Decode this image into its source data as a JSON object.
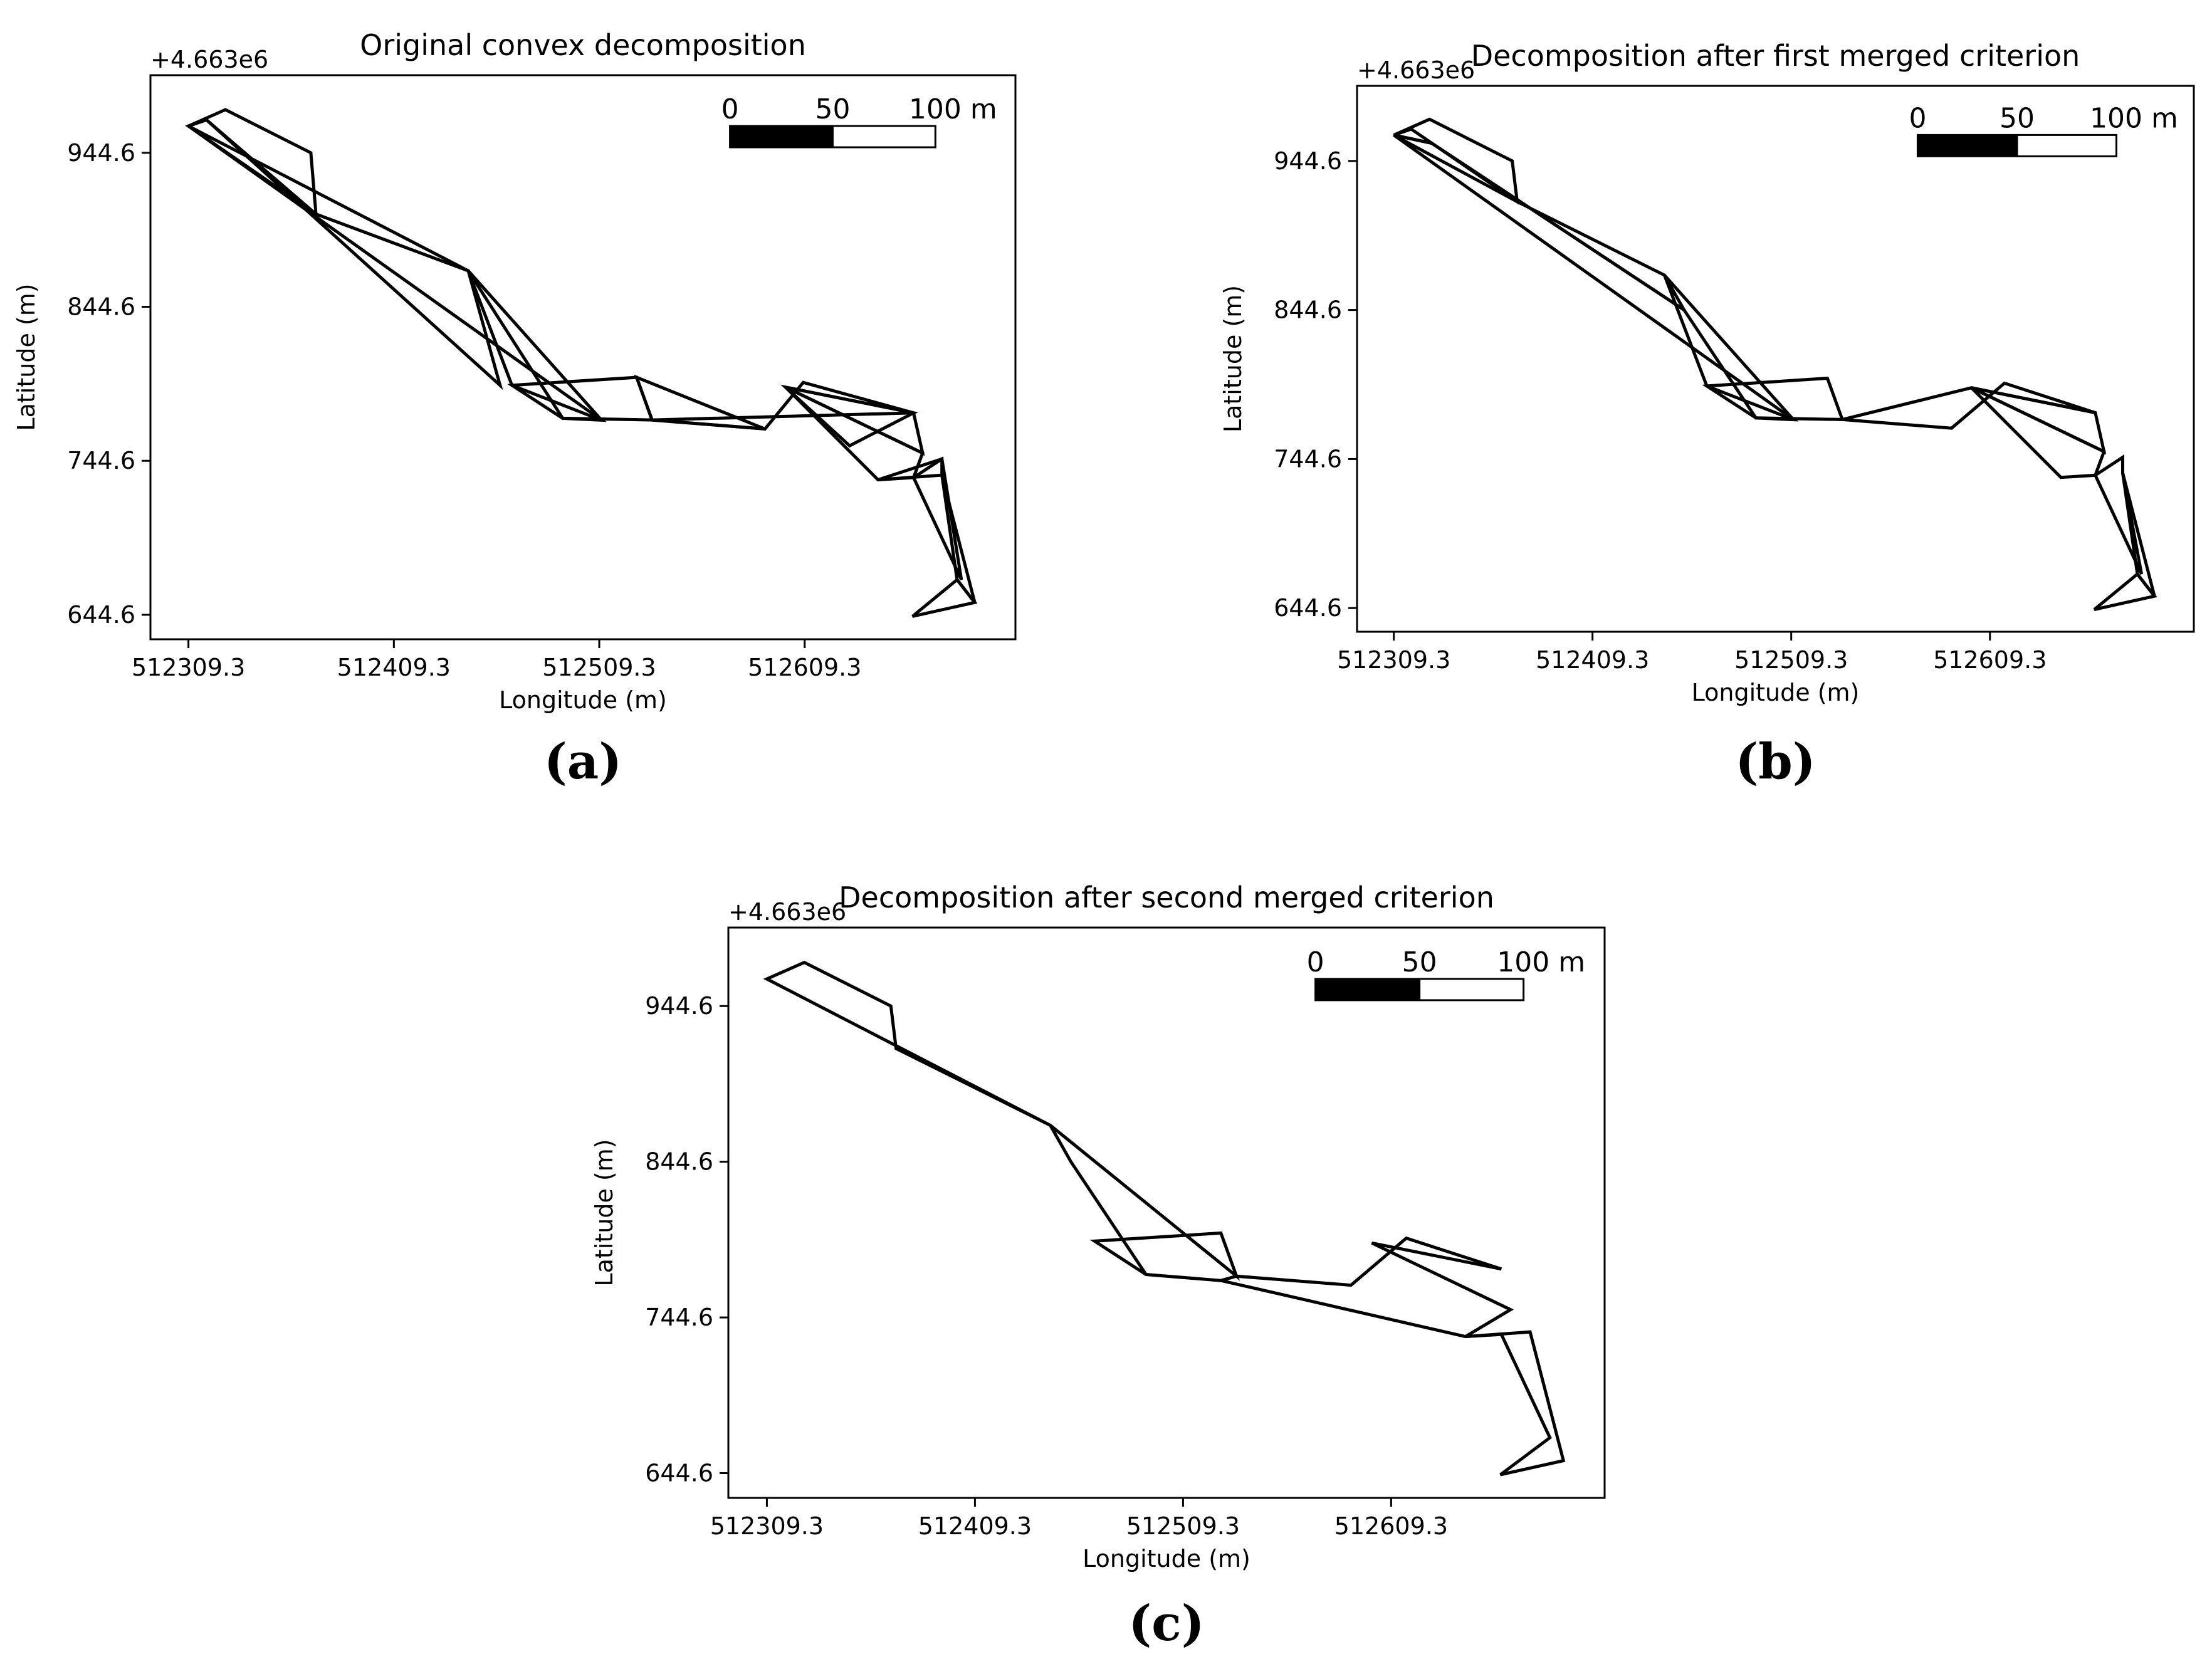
{
  "chart_data": [
    {
      "type": "polygon-map",
      "panel_label": "(a)",
      "title": "Original convex decomposition",
      "offset_label": "+4.663e6",
      "xlabel": "Longitude (m)",
      "ylabel": "Latitude (m)",
      "xticks": [
        "512309.3",
        "512409.3",
        "512509.3",
        "512609.3"
      ],
      "xtick_values": [
        512309.3,
        512409.3,
        512509.3,
        512609.3
      ],
      "yticks": [
        "944.6",
        "844.6",
        "744.6",
        "644.6"
      ],
      "ytick_values": [
        944.6,
        844.6,
        744.6,
        644.6
      ],
      "xlim": [
        512290.8,
        512711.9
      ],
      "ylim": [
        628.7,
        995.0
      ],
      "scalebar": {
        "labels": [
          "0",
          "50",
          "100 m"
        ],
        "length_m": 100
      },
      "polygons": [
        [
          [
            512309.3,
            962.0
          ],
          [
            512327.3,
            972.6
          ],
          [
            512368.9,
            944.6
          ],
          [
            512371.4,
            904.8
          ],
          [
            512318.1,
            966.0
          ]
        ],
        [
          [
            512309.3,
            962.0
          ],
          [
            512371.4,
            904.8
          ],
          [
            512445.5,
            868.0
          ],
          [
            512461.0,
            793.6
          ],
          [
            512318.1,
            966.0
          ]
        ],
        [
          [
            512309.3,
            962.0
          ],
          [
            512445.5,
            868.0
          ],
          [
            512491.5,
            772.2
          ],
          [
            512510.4,
            771.0
          ]
        ],
        [
          [
            512445.5,
            868.0
          ],
          [
            512510.4,
            771.0
          ],
          [
            512466.8,
            793.6
          ]
        ],
        [
          [
            512466.8,
            793.6
          ],
          [
            512527.5,
            798.8
          ],
          [
            512535.0,
            771.1
          ],
          [
            512491.5,
            772.2
          ]
        ],
        [
          [
            512527.5,
            798.8
          ],
          [
            512590.0,
            765.3
          ],
          [
            512535.0,
            771.1
          ]
        ],
        [
          [
            512535.0,
            771.1
          ],
          [
            512590.0,
            765.3
          ],
          [
            512608.6,
            795.5
          ],
          [
            512662.3,
            775.7
          ]
        ],
        [
          [
            512600.0,
            792.4
          ],
          [
            512662.3,
            775.7
          ],
          [
            512631.2,
            754.4
          ]
        ],
        [
          [
            512600.0,
            792.4
          ],
          [
            512666.7,
            749.6
          ],
          [
            512662.3,
            775.7
          ]
        ],
        [
          [
            512600.0,
            792.4
          ],
          [
            512645.0,
            732.3
          ],
          [
            512662.3,
            733.7
          ],
          [
            512666.7,
            749.6
          ]
        ],
        [
          [
            512645.0,
            732.3
          ],
          [
            512676.1,
            745.8
          ],
          [
            512676.1,
            735.3
          ]
        ],
        [
          [
            512662.3,
            733.7
          ],
          [
            512676.1,
            745.8
          ],
          [
            512685.6,
            667.4
          ]
        ],
        [
          [
            512676.1,
            735.3
          ],
          [
            512692.1,
            652.6
          ],
          [
            512683.5,
            667.4
          ]
        ],
        [
          [
            512683.5,
            667.4
          ],
          [
            512692.1,
            652.6
          ],
          [
            512661.8,
            643.6
          ]
        ]
      ]
    },
    {
      "type": "polygon-map",
      "panel_label": "(b)",
      "title": "Decomposition after first merged criterion",
      "offset_label": "+4.663e6",
      "xlabel": "Longitude (m)",
      "ylabel": "Latitude (m)",
      "xticks": [
        "512309.3",
        "512409.3",
        "512509.3",
        "512609.3"
      ],
      "xtick_values": [
        512309.3,
        512409.3,
        512509.3,
        512609.3
      ],
      "yticks": [
        "944.6",
        "844.6",
        "744.6",
        "644.6"
      ],
      "ytick_values": [
        944.6,
        844.6,
        744.6,
        644.6
      ],
      "xlim": [
        512290.8,
        512711.9
      ],
      "ylim": [
        628.7,
        995.0
      ],
      "scalebar": {
        "labels": [
          "0",
          "50",
          "100 m"
        ],
        "length_m": 100
      },
      "polygons": [
        [
          [
            512309.3,
            962.0
          ],
          [
            512327.3,
            972.6
          ],
          [
            512368.9,
            944.6
          ],
          [
            512371.4,
            917.3
          ],
          [
            512318.1,
            966.0
          ]
        ],
        [
          [
            512309.3,
            962.0
          ],
          [
            512371.4,
            917.3
          ],
          [
            512445.5,
            868.0
          ],
          [
            512455.4,
            844.6
          ],
          [
            512328.4,
            956.5
          ]
        ],
        [
          [
            512309.3,
            962.0
          ],
          [
            512328.4,
            956.5
          ],
          [
            512455.4,
            844.6
          ],
          [
            512491.5,
            772.2
          ],
          [
            512510.4,
            771.0
          ]
        ],
        [
          [
            512445.5,
            868.0
          ],
          [
            512510.4,
            771.0
          ],
          [
            512466.8,
            793.6
          ]
        ],
        [
          [
            512466.8,
            793.6
          ],
          [
            512527.5,
            798.8
          ],
          [
            512535.0,
            771.1
          ],
          [
            512491.5,
            772.2
          ]
        ],
        [
          [
            512535.0,
            771.1
          ],
          [
            512590.0,
            765.3
          ],
          [
            512616.6,
            795.5
          ],
          [
            512662.3,
            775.7
          ],
          [
            512600.0,
            792.4
          ]
        ],
        [
          [
            512600.0,
            792.4
          ],
          [
            512666.7,
            749.6
          ],
          [
            512662.3,
            775.7
          ]
        ],
        [
          [
            512600.0,
            792.4
          ],
          [
            512645.0,
            732.3
          ],
          [
            512662.3,
            733.7
          ],
          [
            512666.7,
            749.6
          ]
        ],
        [
          [
            512662.3,
            733.7
          ],
          [
            512676.1,
            745.8
          ],
          [
            512676.1,
            735.3
          ],
          [
            512685.6,
            667.4
          ]
        ],
        [
          [
            512676.1,
            735.3
          ],
          [
            512692.1,
            652.6
          ],
          [
            512683.5,
            667.4
          ]
        ],
        [
          [
            512683.5,
            667.4
          ],
          [
            512692.1,
            652.6
          ],
          [
            512661.8,
            643.6
          ]
        ]
      ]
    },
    {
      "type": "polygon-map",
      "panel_label": "(c)",
      "title": "Decomposition after second merged criterion",
      "offset_label": "+4.663e6",
      "xlabel": "Longitude (m)",
      "ylabel": "Latitude (m)",
      "xticks": [
        "512309.3",
        "512409.3",
        "512509.3",
        "512609.3"
      ],
      "xtick_values": [
        512309.3,
        512409.3,
        512509.3,
        512609.3
      ],
      "yticks": [
        "944.6",
        "844.6",
        "744.6",
        "644.6"
      ],
      "ytick_values": [
        944.6,
        844.6,
        744.6,
        644.6
      ],
      "xlim": [
        512290.8,
        512711.9
      ],
      "ylim": [
        628.7,
        995.0
      ],
      "scalebar": {
        "labels": [
          "0",
          "50",
          "100 m"
        ],
        "length_m": 100
      },
      "polygons": [
        [
          [
            512309.3,
            962.0
          ],
          [
            512327.3,
            972.6
          ],
          [
            512368.9,
            944.6
          ],
          [
            512371.4,
            917.3
          ],
          [
            512445.5,
            868.0
          ],
          [
            512455.4,
            844.6
          ],
          [
            512491.5,
            772.2
          ],
          [
            512527.5,
            768.3
          ],
          [
            512535.0,
            771.1
          ],
          [
            512590.0,
            765.3
          ],
          [
            512616.6,
            795.5
          ],
          [
            512662.3,
            775.7
          ],
          [
            512600.0,
            792.4
          ],
          [
            512666.7,
            749.6
          ],
          [
            512645.0,
            732.3
          ],
          [
            512662.3,
            733.7
          ],
          [
            512685.6,
            667.4
          ],
          [
            512661.8,
            643.6
          ],
          [
            512692.1,
            652.6
          ],
          [
            512676.1,
            735.3
          ],
          [
            512645.0,
            732.3
          ],
          [
            512527.5,
            768.3
          ],
          [
            512491.5,
            772.2
          ],
          [
            512466.8,
            793.6
          ],
          [
            512527.5,
            798.8
          ],
          [
            512535.0,
            771.1
          ],
          [
            512445.5,
            868.0
          ],
          [
            512309.3,
            962.0
          ]
        ]
      ]
    }
  ]
}
